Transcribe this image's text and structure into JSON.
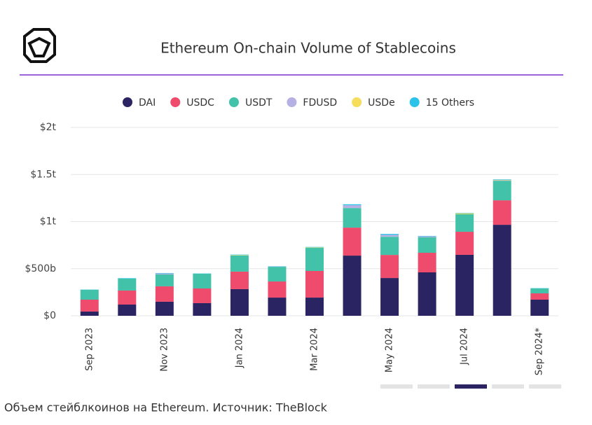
{
  "chart_data": {
    "type": "bar",
    "stacked": true,
    "title": "Ethereum On-chain Volume of Stablecoins",
    "categories": [
      "Sep 2023",
      null,
      "Nov 2023",
      null,
      "Jan 2024",
      null,
      "Mar 2024",
      null,
      "May 2024",
      null,
      "Jul 2024",
      null,
      "Sep 2024*"
    ],
    "series": [
      {
        "name": "DAI",
        "color": "#2b2462",
        "values": [
          45,
          119,
          149,
          134,
          283,
          193,
          193,
          639,
          401,
          461,
          647,
          966,
          171
        ]
      },
      {
        "name": "USDC",
        "color": "#ee4b6d",
        "values": [
          126,
          149,
          164,
          156,
          186,
          171,
          283,
          297,
          245,
          208,
          245,
          260,
          67
        ]
      },
      {
        "name": "USDT",
        "color": "#41c2a9",
        "values": [
          104,
          126,
          126,
          156,
          171,
          156,
          245,
          208,
          193,
          164,
          186,
          208,
          52
        ]
      },
      {
        "name": "FDUSD",
        "color": "#b7b0e2",
        "values": [
          0,
          0,
          10,
          0,
          0,
          3,
          0,
          30,
          20,
          10,
          0,
          5,
          0
        ]
      },
      {
        "name": "USDe",
        "color": "#f6de5c",
        "values": [
          0,
          0,
          0,
          0,
          5,
          0,
          5,
          0,
          0,
          0,
          10,
          5,
          0
        ]
      },
      {
        "name": "15 Others",
        "color": "#2bc3e9",
        "values": [
          3,
          5,
          5,
          3,
          5,
          3,
          5,
          10,
          10,
          5,
          5,
          5,
          3
        ]
      }
    ],
    "ylim": [
      0,
      2000
    ],
    "yticks": [
      {
        "value": 0,
        "label": "$0"
      },
      {
        "value": 500,
        "label": "$500b"
      },
      {
        "value": 1000,
        "label": "$1t"
      },
      {
        "value": 1500,
        "label": "$1.5t"
      },
      {
        "value": 2000,
        "label": "$2t"
      }
    ],
    "grid": true,
    "legend": "top"
  },
  "caption": "Объем стейблкоинов на Ethereum. Источник: TheBlock"
}
